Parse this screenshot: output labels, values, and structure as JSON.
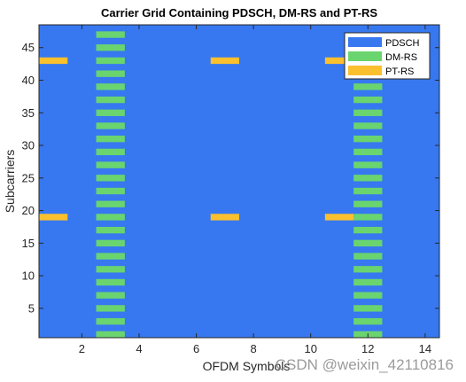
{
  "chart_data": {
    "type": "heatmap",
    "title": "Carrier Grid Containing PDSCH, DM-RS and PT-RS",
    "xlabel": "OFDM Symbols",
    "ylabel": "Subcarriers",
    "xlim": [
      0.5,
      14.5
    ],
    "ylim": [
      0.5,
      48.5
    ],
    "xticks": [
      2,
      4,
      6,
      8,
      10,
      12,
      14
    ],
    "yticks": [
      5,
      10,
      15,
      20,
      25,
      30,
      35,
      40,
      45
    ],
    "grid": false,
    "legend_position": "top-right",
    "background_series": "PDSCH",
    "series": [
      {
        "name": "PDSCH",
        "color": "#3778f0",
        "points": []
      },
      {
        "name": "DM-RS",
        "color": "#6ad46f",
        "points": [
          [
            3,
            1
          ],
          [
            3,
            3
          ],
          [
            3,
            5
          ],
          [
            3,
            7
          ],
          [
            3,
            9
          ],
          [
            3,
            11
          ],
          [
            3,
            13
          ],
          [
            3,
            15
          ],
          [
            3,
            17
          ],
          [
            3,
            19
          ],
          [
            3,
            21
          ],
          [
            3,
            23
          ],
          [
            3,
            25
          ],
          [
            3,
            27
          ],
          [
            3,
            29
          ],
          [
            3,
            31
          ],
          [
            3,
            33
          ],
          [
            3,
            35
          ],
          [
            3,
            37
          ],
          [
            3,
            39
          ],
          [
            3,
            41
          ],
          [
            3,
            43
          ],
          [
            3,
            45
          ],
          [
            3,
            47
          ],
          [
            12,
            1
          ],
          [
            12,
            3
          ],
          [
            12,
            5
          ],
          [
            12,
            7
          ],
          [
            12,
            9
          ],
          [
            12,
            11
          ],
          [
            12,
            13
          ],
          [
            12,
            15
          ],
          [
            12,
            17
          ],
          [
            12,
            19
          ],
          [
            12,
            21
          ],
          [
            12,
            23
          ],
          [
            12,
            25
          ],
          [
            12,
            27
          ],
          [
            12,
            29
          ],
          [
            12,
            31
          ],
          [
            12,
            33
          ],
          [
            12,
            35
          ],
          [
            12,
            37
          ],
          [
            12,
            39
          ],
          [
            12,
            41
          ],
          [
            12,
            43
          ]
        ]
      },
      {
        "name": "PT-RS",
        "color": "#fbc02d",
        "points": [
          [
            1,
            19
          ],
          [
            1,
            43
          ],
          [
            7,
            19
          ],
          [
            7,
            43
          ],
          [
            11,
            19
          ],
          [
            11,
            43
          ]
        ]
      }
    ]
  },
  "watermark": "CSDN @weixin_42110816"
}
